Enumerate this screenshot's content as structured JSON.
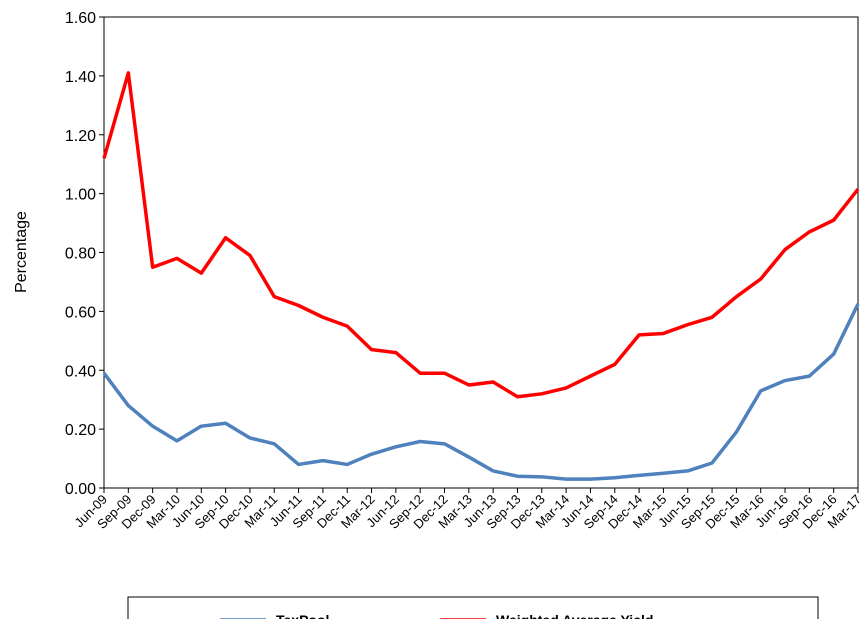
{
  "chart_data": {
    "type": "line",
    "y_label": "Percentage",
    "categories": [
      "Jun-09",
      "Sep-09",
      "Dec-09",
      "Mar-10",
      "Jun-10",
      "Sep-10",
      "Dec-10",
      "Mar-11",
      "Jun-11",
      "Sep-11",
      "Dec-11",
      "Mar-12",
      "Jun-12",
      "Sep-12",
      "Dec-12",
      "Mar-13",
      "Jun-13",
      "Sep-13",
      "Dec-13",
      "Mar-14",
      "Jun-14",
      "Sep-14",
      "Dec-14",
      "Mar-15",
      "Jun-15",
      "Sep-15",
      "Dec-15",
      "Mar-16",
      "Jun-16",
      "Sep-16",
      "Dec-16",
      "Mar-17"
    ],
    "series": [
      {
        "name": "TexPool",
        "color": "#4f81bd",
        "values": [
          0.39,
          0.28,
          0.21,
          0.16,
          0.21,
          0.22,
          0.17,
          0.15,
          0.08,
          0.093,
          0.08,
          0.115,
          0.14,
          0.158,
          0.15,
          0.105,
          0.058,
          0.04,
          0.038,
          0.03,
          0.03,
          0.035,
          0.043,
          0.05,
          0.058,
          0.085,
          0.19,
          0.33,
          0.365,
          0.38,
          0.455,
          0.625
        ]
      },
      {
        "name": "Weighted Average Yield",
        "color": "#ff0000",
        "values": [
          1.12,
          1.41,
          0.75,
          0.78,
          0.73,
          0.85,
          0.79,
          0.65,
          0.62,
          0.58,
          0.55,
          0.47,
          0.46,
          0.39,
          0.39,
          0.35,
          0.36,
          0.31,
          0.32,
          0.34,
          0.38,
          0.42,
          0.52,
          0.525,
          0.555,
          0.58,
          0.65,
          0.71,
          0.81,
          0.87,
          0.91,
          1.015
        ]
      }
    ],
    "ylim": [
      0,
      1.6
    ],
    "yticks": [
      {
        "value": 0,
        "label": "0.00"
      },
      {
        "value": 0.2,
        "label": "0.20"
      },
      {
        "value": 0.4,
        "label": "0.40"
      },
      {
        "value": 0.6,
        "label": "0.60"
      },
      {
        "value": 0.8,
        "label": "0.80"
      },
      {
        "value": 1,
        "label": "1.00"
      },
      {
        "value": 1.2,
        "label": "1.20"
      },
      {
        "value": 1.4,
        "label": "1.40"
      },
      {
        "value": 1.6,
        "label": "1.60"
      }
    ],
    "grid": false,
    "legend": "bottom"
  }
}
